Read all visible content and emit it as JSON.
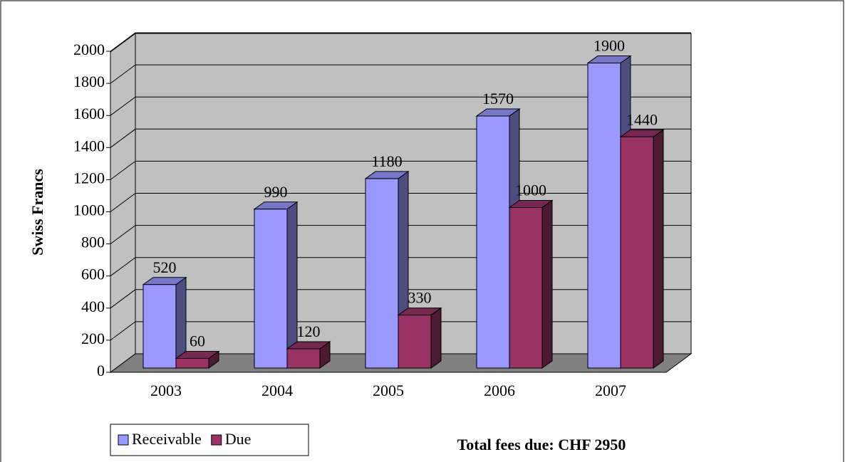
{
  "chart_data": {
    "type": "bar3d",
    "categories": [
      "2003",
      "2004",
      "2005",
      "2006",
      "2007"
    ],
    "series": [
      {
        "name": "Receivable",
        "color": "#9999ff",
        "values": [
          520,
          990,
          1180,
          1570,
          1900
        ]
      },
      {
        "name": "Due",
        "color": "#993366",
        "values": [
          60,
          120,
          330,
          1000,
          1440
        ]
      }
    ],
    "y_label": "Swiss Francs",
    "ylim": [
      0,
      2000
    ],
    "yticks": [
      0,
      200,
      400,
      600,
      800,
      1000,
      1200,
      1400,
      1600,
      1800,
      2000
    ],
    "grid": true,
    "legend": "bottom-left",
    "annotation": "Total fees due: CHF 2950"
  }
}
